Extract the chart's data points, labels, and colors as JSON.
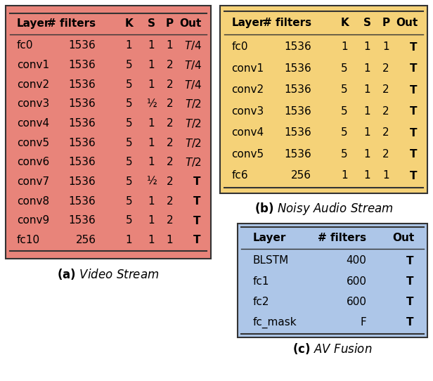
{
  "table_a": {
    "title_bold": "(a)",
    "title_italic": "Video Stream",
    "headers": [
      "Layer",
      "# filters",
      "K",
      "S",
      "P",
      "Out"
    ],
    "rows": [
      [
        "fc0",
        "1536",
        "1",
        "1",
        "1",
        "T/4"
      ],
      [
        "conv1",
        "1536",
        "5",
        "1",
        "2",
        "T/4"
      ],
      [
        "conv2",
        "1536",
        "5",
        "1",
        "2",
        "T/4"
      ],
      [
        "conv3",
        "1536",
        "5",
        "½",
        "2",
        "T/2"
      ],
      [
        "conv4",
        "1536",
        "5",
        "1",
        "2",
        "T/2"
      ],
      [
        "conv5",
        "1536",
        "5",
        "1",
        "2",
        "T/2"
      ],
      [
        "conv6",
        "1536",
        "5",
        "1",
        "2",
        "T/2"
      ],
      [
        "conv7",
        "1536",
        "5",
        "½",
        "2",
        "T"
      ],
      [
        "conv8",
        "1536",
        "5",
        "1",
        "2",
        "T"
      ],
      [
        "conv9",
        "1536",
        "5",
        "1",
        "2",
        "T"
      ],
      [
        "fc10",
        "256",
        "1",
        "1",
        "1",
        "T"
      ]
    ],
    "out_italic": [
      true,
      true,
      true,
      true,
      true,
      true,
      true,
      false,
      false,
      false,
      false
    ],
    "out_vals": [
      "T/4",
      "T/4",
      "T/4",
      "T/2",
      "T/2",
      "T/2",
      "T/2",
      "T",
      "T",
      "T",
      "T"
    ],
    "bg_color": "#e8847a"
  },
  "table_b": {
    "title_bold": "(b)",
    "title_italic": "Noisy Audio Stream",
    "headers": [
      "Layer",
      "# filters",
      "K",
      "S",
      "P",
      "Out"
    ],
    "rows": [
      [
        "fc0",
        "1536",
        "1",
        "1",
        "1",
        "T"
      ],
      [
        "conv1",
        "1536",
        "5",
        "1",
        "2",
        "T"
      ],
      [
        "conv2",
        "1536",
        "5",
        "1",
        "2",
        "T"
      ],
      [
        "conv3",
        "1536",
        "5",
        "1",
        "2",
        "T"
      ],
      [
        "conv4",
        "1536",
        "5",
        "1",
        "2",
        "T"
      ],
      [
        "conv5",
        "1536",
        "5",
        "1",
        "2",
        "T"
      ],
      [
        "fc6",
        "256",
        "1",
        "1",
        "1",
        "T"
      ]
    ],
    "bg_color": "#f5d278"
  },
  "table_c": {
    "title_bold": "(c)",
    "title_italic": "AV Fusion",
    "headers": [
      "Layer",
      "# filters",
      "Out"
    ],
    "rows": [
      [
        "BLSTM",
        "400",
        "T"
      ],
      [
        "fc1",
        "600",
        "T"
      ],
      [
        "fc2",
        "600",
        "T"
      ],
      [
        "fc_mask",
        "F",
        "T"
      ]
    ],
    "bg_color": "#adc6e8"
  },
  "font_size": 11,
  "title_font_size": 12,
  "line_color": "#333333",
  "text_color": "#000000",
  "fig_bg": "#ffffff"
}
